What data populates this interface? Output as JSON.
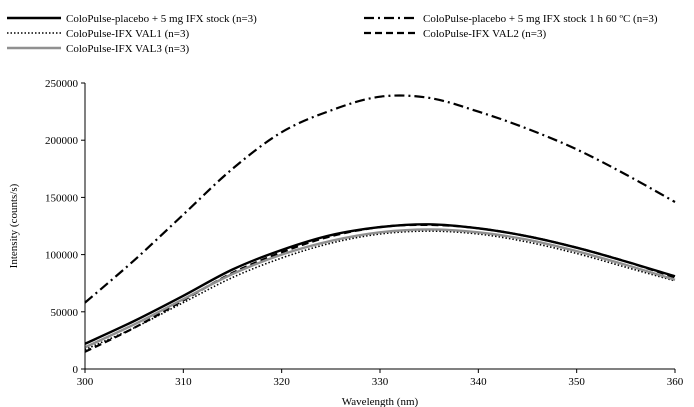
{
  "chart_data": {
    "type": "line",
    "xlabel": "Wavelength (nm)",
    "ylabel": "Intensity (counts/s)",
    "xlim": [
      300,
      360
    ],
    "ylim": [
      0,
      250000
    ],
    "x_ticks": [
      300,
      310,
      320,
      330,
      340,
      350,
      360
    ],
    "y_ticks": [
      0,
      50000,
      100000,
      150000,
      200000,
      250000
    ],
    "grid": false,
    "legend_position": "top",
    "series": [
      {
        "name": "ColoPulse-placebo + 5 mg IFX stock (n=3)",
        "color": "#000000",
        "style": "solid-thick",
        "x": [
          300,
          305,
          310,
          315,
          320,
          325,
          330,
          335,
          340,
          345,
          350,
          355,
          360
        ],
        "y": [
          22000,
          42000,
          64000,
          87000,
          104000,
          117000,
          124000,
          126500,
          123000,
          116000,
          106000,
          94000,
          81000
        ]
      },
      {
        "name": "ColoPulse-placebo + 5 mg IFX stock 1 h 60 ºC (n=3)",
        "color": "#000000",
        "style": "dashdot",
        "x": [
          300,
          305,
          310,
          315,
          320,
          325,
          330,
          335,
          340,
          345,
          350,
          355,
          360
        ],
        "y": [
          58000,
          95000,
          135000,
          175000,
          207000,
          226000,
          238000,
          237000,
          225000,
          210000,
          192000,
          170000,
          146000
        ]
      },
      {
        "name": "ColoPulse-IFX VAL1 (n=3)",
        "color": "#000000",
        "style": "dotted",
        "x": [
          300,
          305,
          310,
          315,
          320,
          325,
          330,
          335,
          340,
          345,
          350,
          355,
          360
        ],
        "y": [
          17000,
          36000,
          58000,
          80000,
          97000,
          110000,
          118000,
          120500,
          118000,
          111000,
          101000,
          89000,
          77000
        ]
      },
      {
        "name": "ColoPulse-IFX VAL2 (n=3)",
        "color": "#000000",
        "style": "dashed",
        "x": [
          300,
          305,
          310,
          315,
          320,
          325,
          330,
          335,
          340,
          345,
          350,
          355,
          360
        ],
        "y": [
          15000,
          36000,
          60000,
          84000,
          102000,
          116000,
          124000,
          126000,
          123000,
          116000,
          106000,
          94000,
          80000
        ]
      },
      {
        "name": "ColoPulse-IFX VAL3 (n=3)",
        "color": "#909090",
        "style": "solid-gray",
        "x": [
          300,
          305,
          310,
          315,
          320,
          325,
          330,
          335,
          340,
          345,
          350,
          355,
          360
        ],
        "y": [
          19000,
          39000,
          61000,
          83000,
          100000,
          112000,
          119500,
          122000,
          119500,
          113000,
          103000,
          91000,
          78000
        ]
      }
    ]
  }
}
